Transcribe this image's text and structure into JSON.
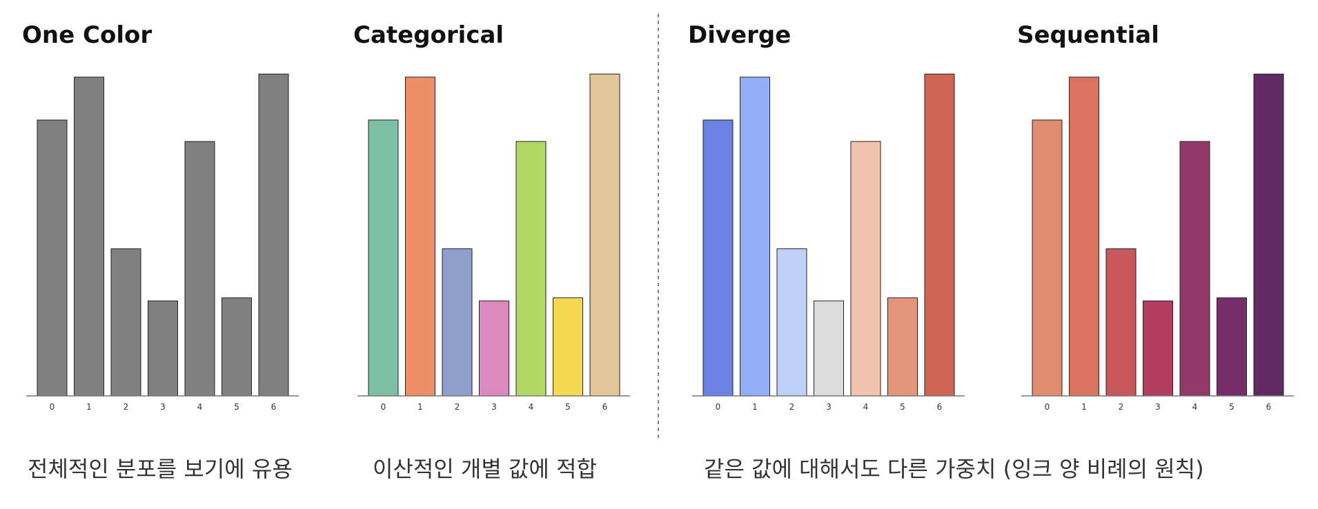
{
  "chart_data": [
    {
      "type": "bar",
      "title": "One Color",
      "categories": [
        "0",
        "1",
        "2",
        "3",
        "4",
        "5",
        "6"
      ],
      "values": [
        9.0,
        10.4,
        4.8,
        3.1,
        8.3,
        3.2,
        10.5
      ],
      "ylim": [
        0,
        10.8
      ],
      "grid": false,
      "colors": [
        "#808080",
        "#808080",
        "#808080",
        "#808080",
        "#808080",
        "#808080",
        "#808080"
      ]
    },
    {
      "type": "bar",
      "title": "Categorical",
      "categories": [
        "0",
        "1",
        "2",
        "3",
        "4",
        "5",
        "6"
      ],
      "values": [
        9.0,
        10.4,
        4.8,
        3.1,
        8.3,
        3.2,
        10.5
      ],
      "ylim": [
        0,
        10.8
      ],
      "grid": false,
      "colors": [
        "#7dbfa4",
        "#ec8f69",
        "#8f9fcb",
        "#db8ac0",
        "#b2d867",
        "#f7d951",
        "#e0c699"
      ]
    },
    {
      "type": "bar",
      "title": "Diverge",
      "categories": [
        "0",
        "1",
        "2",
        "3",
        "4",
        "5",
        "6"
      ],
      "values": [
        9.0,
        10.4,
        4.8,
        3.1,
        8.3,
        3.2,
        10.5
      ],
      "ylim": [
        0,
        10.8
      ],
      "grid": false,
      "colors": [
        "#6a82e3",
        "#94aef8",
        "#c0d1f8",
        "#dcdcdc",
        "#efc3ad",
        "#e5977b",
        "#d06553"
      ]
    },
    {
      "type": "bar",
      "title": "Sequential",
      "categories": [
        "0",
        "1",
        "2",
        "3",
        "4",
        "5",
        "6"
      ],
      "values": [
        9.0,
        10.4,
        4.8,
        3.1,
        8.3,
        3.2,
        10.5
      ],
      "ylim": [
        0,
        10.8
      ],
      "grid": false,
      "colors": [
        "#e08c70",
        "#d97461",
        "#c7575a",
        "#b23d5e",
        "#93396a",
        "#762e6b",
        "#5f2961"
      ]
    }
  ],
  "captions": {
    "one_color": "전체적인 분포를 보기에 유용",
    "categorical": "이산적인 개별 값에 적합",
    "weighted": "같은 값에 대해서도 다른 가중치 (잉크 양 비례의 원칙)"
  }
}
